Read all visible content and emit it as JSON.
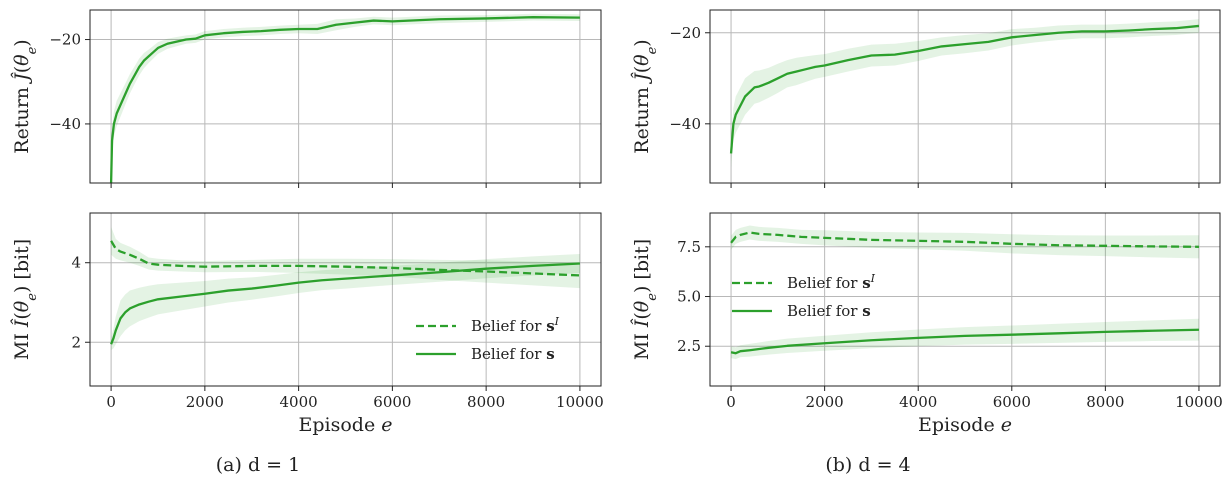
{
  "figure": {
    "caption_a": "(a) d = 1",
    "caption_b": "(b) d = 4",
    "xlabel": "Episode e",
    "ylabel_return": "Return Ĵ(θe)",
    "ylabel_mi": "MI Î(θe) [bit]"
  },
  "colors": {
    "series": "#2ca02c",
    "band": "#2ca02c"
  },
  "chart_data": [
    {
      "id": "a-return",
      "type": "line",
      "xlabel": "",
      "ylabel": "Return Ĵ(θe)",
      "xlim": [
        -450,
        10450
      ],
      "ylim": [
        -54,
        -13
      ],
      "xticks": [
        0,
        2000,
        4000,
        6000,
        8000,
        10000
      ],
      "yticks": [
        -40,
        -20
      ],
      "ytick_labels": [
        "−40",
        "−20"
      ],
      "grid": true,
      "series": [
        {
          "style": "solid",
          "x": [
            0,
            20,
            60,
            120,
            200,
            300,
            400,
            500,
            600,
            700,
            800,
            900,
            1000,
            1200,
            1400,
            1600,
            1800,
            2000,
            2400,
            2800,
            3200,
            3600,
            4000,
            4400,
            4800,
            5200,
            5600,
            6000,
            7000,
            8000,
            9000,
            10000
          ],
          "y": [
            -54,
            -44,
            -40,
            -37.5,
            -35.5,
            -33,
            -30.5,
            -28.5,
            -26.5,
            -25,
            -24,
            -23,
            -22,
            -21,
            -20.5,
            -20,
            -19.8,
            -19,
            -18.5,
            -18.2,
            -18,
            -17.7,
            -17.5,
            -17.5,
            -16.5,
            -16,
            -15.5,
            -15.7,
            -15.2,
            -15,
            -14.7,
            -14.8
          ],
          "band": [
            4,
            3,
            3,
            3,
            2.8,
            2.5,
            2.3,
            2.1,
            2,
            1.8,
            1.6,
            1.5,
            1.4,
            1.2,
            1.1,
            1,
            1,
            1,
            1,
            1,
            1,
            1,
            1,
            1.2,
            1.3,
            1,
            0.9,
            0.9,
            0.9,
            0.8,
            0.8,
            0.8
          ]
        }
      ]
    },
    {
      "id": "a-mi",
      "type": "line",
      "xlabel": "Episode e",
      "ylabel": "MI Î(θe) [bit]",
      "xlim": [
        -450,
        10450
      ],
      "ylim": [
        0.9,
        5.25
      ],
      "xticks": [
        0,
        2000,
        4000,
        6000,
        8000,
        10000
      ],
      "yticks": [
        2,
        4
      ],
      "ytick_labels": [
        "2",
        "4"
      ],
      "grid": true,
      "legend": {
        "placement": "lower-right",
        "entries": [
          "Belief for sI",
          "Belief for s"
        ]
      },
      "series": [
        {
          "name": "Belief for sI",
          "style": "dashed",
          "x": [
            0,
            100,
            200,
            400,
            600,
            800,
            1000,
            1500,
            2000,
            3000,
            4000,
            5000,
            6000,
            7000,
            8000,
            9000,
            10000
          ],
          "y": [
            4.55,
            4.35,
            4.28,
            4.2,
            4.1,
            3.98,
            3.95,
            3.92,
            3.9,
            3.92,
            3.92,
            3.9,
            3.87,
            3.82,
            3.78,
            3.73,
            3.68
          ],
          "band": [
            0.35,
            0.25,
            0.22,
            0.2,
            0.18,
            0.15,
            0.15,
            0.14,
            0.14,
            0.15,
            0.18,
            0.2,
            0.22,
            0.25,
            0.28,
            0.3,
            0.32
          ]
        },
        {
          "name": "Belief for s",
          "style": "solid",
          "x": [
            0,
            50,
            100,
            200,
            300,
            400,
            600,
            800,
            1000,
            1500,
            2000,
            2500,
            3000,
            3500,
            4000,
            4500,
            5000,
            6000,
            7000,
            8000,
            9000,
            10000
          ],
          "y": [
            1.95,
            2.1,
            2.3,
            2.6,
            2.75,
            2.85,
            2.95,
            3.02,
            3.08,
            3.15,
            3.22,
            3.3,
            3.35,
            3.42,
            3.5,
            3.56,
            3.6,
            3.68,
            3.76,
            3.85,
            3.92,
            3.98
          ],
          "band": [
            0.15,
            0.25,
            0.35,
            0.45,
            0.45,
            0.45,
            0.42,
            0.4,
            0.38,
            0.35,
            0.32,
            0.3,
            0.28,
            0.27,
            0.26,
            0.25,
            0.25,
            0.24,
            0.24,
            0.24,
            0.24,
            0.24
          ]
        }
      ]
    },
    {
      "id": "b-return",
      "type": "line",
      "xlabel": "",
      "ylabel": "Return Ĵ(θe)",
      "xlim": [
        -450,
        10450
      ],
      "ylim": [
        -53,
        -15
      ],
      "xticks": [
        0,
        2000,
        4000,
        6000,
        8000,
        10000
      ],
      "yticks": [
        -40,
        -20
      ],
      "ytick_labels": [
        "−40",
        "−20"
      ],
      "grid": true,
      "series": [
        {
          "style": "solid",
          "x": [
            0,
            50,
            100,
            200,
            300,
            400,
            500,
            600,
            800,
            1000,
            1200,
            1400,
            1600,
            1800,
            2000,
            2500,
            3000,
            3500,
            4000,
            4500,
            5000,
            5500,
            6000,
            6500,
            7000,
            7500,
            8000,
            8500,
            9000,
            9500,
            10000
          ],
          "y": [
            -46.5,
            -40,
            -38,
            -36,
            -34,
            -33,
            -32,
            -31.8,
            -31,
            -30,
            -29,
            -28.5,
            -28,
            -27.5,
            -27.2,
            -26,
            -25,
            -24.8,
            -24,
            -23,
            -22.5,
            -22,
            -21,
            -20.5,
            -20,
            -19.7,
            -19.7,
            -19.5,
            -19.2,
            -19,
            -18.5
          ],
          "band": [
            3,
            3.5,
            4,
            4,
            4,
            3.8,
            3.6,
            3.5,
            3.3,
            3.2,
            3,
            3,
            2.8,
            2.6,
            2.5,
            2.5,
            2.4,
            2.4,
            2.2,
            2,
            2,
            1.9,
            1.8,
            1.6,
            1.6,
            1.5,
            1.5,
            1.5,
            1.5,
            1.5,
            1.5
          ]
        }
      ]
    },
    {
      "id": "b-mi",
      "type": "line",
      "xlabel": "Episode e",
      "ylabel": "MI Î(θe) [bit]",
      "xlim": [
        -450,
        10450
      ],
      "ylim": [
        0.5,
        9.2
      ],
      "xticks": [
        0,
        2000,
        4000,
        6000,
        8000,
        10000
      ],
      "yticks": [
        2.5,
        5.0,
        7.5
      ],
      "ytick_labels": [
        "2.5",
        "5.0",
        "7.5"
      ],
      "grid": true,
      "legend": {
        "placement": "center-left",
        "entries": [
          "Belief for sI",
          "Belief for s"
        ]
      },
      "series": [
        {
          "name": "Belief for sI",
          "style": "dashed",
          "x": [
            0,
            100,
            200,
            400,
            600,
            1000,
            1500,
            2000,
            3000,
            4000,
            5000,
            6000,
            7000,
            8000,
            9000,
            10000
          ],
          "y": [
            7.7,
            8.0,
            8.1,
            8.22,
            8.15,
            8.1,
            8.0,
            7.95,
            7.85,
            7.8,
            7.75,
            7.65,
            7.58,
            7.55,
            7.52,
            7.5
          ],
          "band": [
            0.35,
            0.35,
            0.35,
            0.35,
            0.35,
            0.35,
            0.35,
            0.38,
            0.4,
            0.42,
            0.45,
            0.48,
            0.5,
            0.52,
            0.55,
            0.58
          ]
        },
        {
          "name": "Belief for s",
          "style": "solid",
          "x": [
            0,
            100,
            200,
            400,
            800,
            1200,
            2000,
            3000,
            4000,
            5000,
            6000,
            7000,
            8000,
            9000,
            10000
          ],
          "y": [
            2.2,
            2.15,
            2.25,
            2.3,
            2.42,
            2.52,
            2.65,
            2.8,
            2.92,
            3.02,
            3.08,
            3.15,
            3.22,
            3.28,
            3.33
          ],
          "band": [
            0.3,
            0.3,
            0.3,
            0.32,
            0.34,
            0.36,
            0.38,
            0.4,
            0.42,
            0.44,
            0.46,
            0.48,
            0.5,
            0.52,
            0.55
          ]
        }
      ]
    }
  ]
}
